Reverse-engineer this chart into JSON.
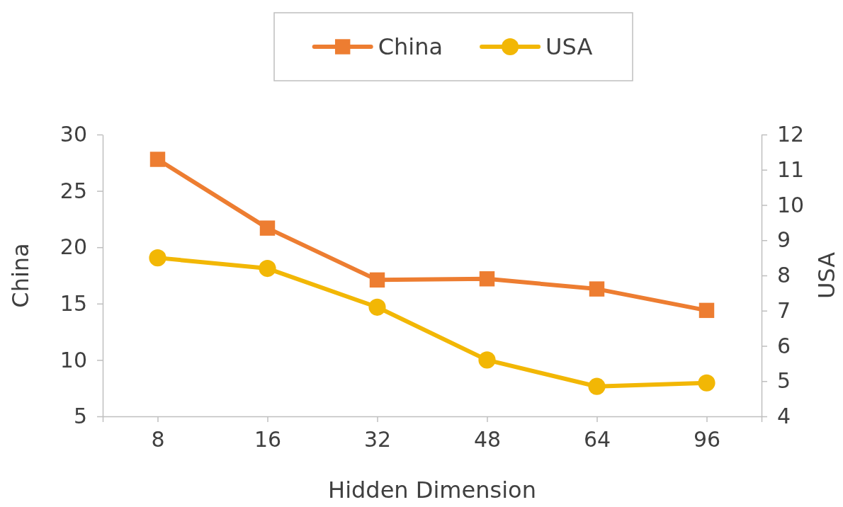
{
  "chart_data": {
    "type": "line",
    "xlabel": "Hidden Dimension",
    "ylabel": "China",
    "y2label": "USA",
    "categories": [
      "8",
      "16",
      "32",
      "48",
      "64",
      "96"
    ],
    "series": [
      {
        "name": "China",
        "color": "#ed7d31",
        "marker": "square",
        "values": [
          27.8,
          21.7,
          17.1,
          17.2,
          16.3,
          14.4
        ]
      },
      {
        "name": "USA",
        "color": "#f2b705",
        "marker": "circle",
        "axis": "y2",
        "values": [
          8.5,
          8.2,
          7.1,
          5.6,
          4.85,
          4.95
        ]
      }
    ],
    "ylim": [
      5,
      30
    ],
    "yticks": [
      5,
      10,
      15,
      20,
      25,
      30
    ],
    "y2lim": [
      4,
      12
    ],
    "y2ticks": [
      4,
      5,
      6,
      7,
      8,
      9,
      10,
      11,
      12
    ],
    "legend": "top",
    "grid": false,
    "line_style": "solid"
  }
}
